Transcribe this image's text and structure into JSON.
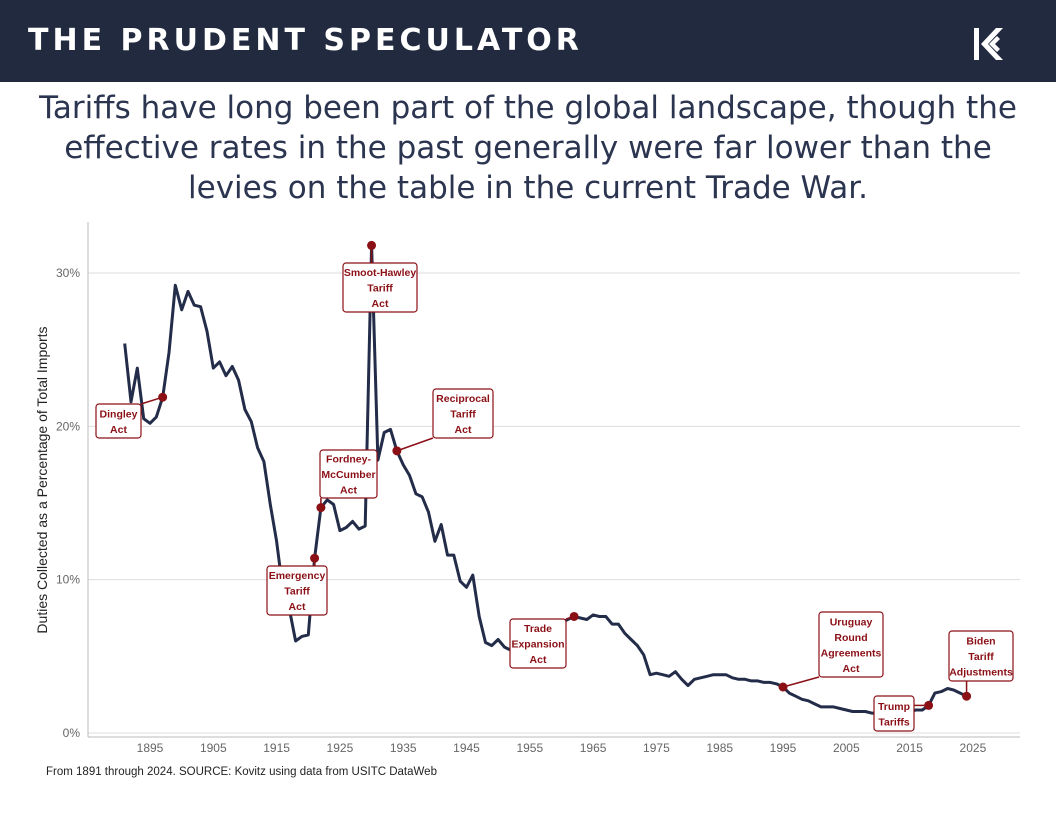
{
  "header": {
    "brand": "THE PRUDENT SPECULATOR",
    "logo_icon": "kovitz-k-logo-icon"
  },
  "headline": {
    "lines": [
      "Tariffs have long been part of the global landscape, though the",
      "effective rates in the past generally were far lower than the",
      "levies on the table in the current Trade War."
    ]
  },
  "colors": {
    "header_bg": "#212a3f",
    "line": "#232c48",
    "annotation": "#8b1016",
    "grid": "#dddddd"
  },
  "chart_data": {
    "type": "line",
    "title": "",
    "xlabel": "",
    "ylabel": "Duties Collected as a Percentage of Total Imports",
    "xlim": [
      1885,
      2031
    ],
    "ylim": [
      0,
      33
    ],
    "x_ticks": [
      1895,
      1905,
      1915,
      1925,
      1935,
      1945,
      1955,
      1965,
      1975,
      1985,
      1995,
      2005,
      2015,
      2025
    ],
    "y_ticks": [
      {
        "value": 0,
        "label": "0%"
      },
      {
        "value": 10,
        "label": "10%"
      },
      {
        "value": 20,
        "label": "20%"
      },
      {
        "value": 30,
        "label": "30%"
      }
    ],
    "grid": "horizontal",
    "series": [
      {
        "name": "Duties Collected as a Percentage of Total Imports",
        "points": [
          [
            1891,
            25.4
          ],
          [
            1892,
            21.6
          ],
          [
            1893,
            23.8
          ],
          [
            1894,
            20.5
          ],
          [
            1895,
            20.2
          ],
          [
            1896,
            20.6
          ],
          [
            1897,
            21.9
          ],
          [
            1898,
            24.8
          ],
          [
            1899,
            29.2
          ],
          [
            1900,
            27.6
          ],
          [
            1901,
            28.8
          ],
          [
            1902,
            27.9
          ],
          [
            1903,
            27.8
          ],
          [
            1904,
            26.2
          ],
          [
            1905,
            23.8
          ],
          [
            1906,
            24.2
          ],
          [
            1907,
            23.3
          ],
          [
            1908,
            23.9
          ],
          [
            1909,
            23.0
          ],
          [
            1910,
            21.1
          ],
          [
            1911,
            20.3
          ],
          [
            1912,
            18.6
          ],
          [
            1913,
            17.7
          ],
          [
            1914,
            14.9
          ],
          [
            1915,
            12.5
          ],
          [
            1916,
            9.3
          ],
          [
            1917,
            8.1
          ],
          [
            1918,
            6.0
          ],
          [
            1919,
            6.3
          ],
          [
            1920,
            6.4
          ],
          [
            1921,
            11.4
          ],
          [
            1922,
            14.7
          ],
          [
            1923,
            15.2
          ],
          [
            1924,
            14.9
          ],
          [
            1925,
            13.2
          ],
          [
            1926,
            13.4
          ],
          [
            1927,
            13.8
          ],
          [
            1928,
            13.3
          ],
          [
            1929,
            13.5
          ],
          [
            1930,
            31.8
          ],
          [
            1931,
            17.8
          ],
          [
            1932,
            19.6
          ],
          [
            1933,
            19.8
          ],
          [
            1934,
            18.4
          ],
          [
            1935,
            17.5
          ],
          [
            1936,
            16.8
          ],
          [
            1937,
            15.6
          ],
          [
            1938,
            15.4
          ],
          [
            1939,
            14.4
          ],
          [
            1940,
            12.5
          ],
          [
            1941,
            13.6
          ],
          [
            1942,
            11.6
          ],
          [
            1943,
            11.6
          ],
          [
            1944,
            9.9
          ],
          [
            1945,
            9.5
          ],
          [
            1946,
            10.3
          ],
          [
            1947,
            7.6
          ],
          [
            1948,
            5.9
          ],
          [
            1949,
            5.7
          ],
          [
            1950,
            6.1
          ],
          [
            1951,
            5.6
          ],
          [
            1952,
            5.4
          ],
          [
            1953,
            5.6
          ],
          [
            1954,
            5.3
          ],
          [
            1955,
            5.6
          ],
          [
            1956,
            6.0
          ],
          [
            1957,
            6.5
          ],
          [
            1958,
            7.1
          ],
          [
            1959,
            7.2
          ],
          [
            1960,
            7.2
          ],
          [
            1961,
            7.4
          ],
          [
            1962,
            7.6
          ],
          [
            1963,
            7.5
          ],
          [
            1964,
            7.4
          ],
          [
            1965,
            7.7
          ],
          [
            1966,
            7.6
          ],
          [
            1967,
            7.6
          ],
          [
            1968,
            7.1
          ],
          [
            1969,
            7.1
          ],
          [
            1970,
            6.5
          ],
          [
            1971,
            6.1
          ],
          [
            1972,
            5.7
          ],
          [
            1973,
            5.1
          ],
          [
            1974,
            3.8
          ],
          [
            1975,
            3.9
          ],
          [
            1976,
            3.8
          ],
          [
            1977,
            3.7
          ],
          [
            1978,
            4.0
          ],
          [
            1979,
            3.5
          ],
          [
            1980,
            3.1
          ],
          [
            1981,
            3.5
          ],
          [
            1982,
            3.6
          ],
          [
            1983,
            3.7
          ],
          [
            1984,
            3.8
          ],
          [
            1985,
            3.8
          ],
          [
            1986,
            3.8
          ],
          [
            1987,
            3.6
          ],
          [
            1988,
            3.5
          ],
          [
            1989,
            3.5
          ],
          [
            1990,
            3.4
          ],
          [
            1991,
            3.4
          ],
          [
            1992,
            3.3
          ],
          [
            1993,
            3.3
          ],
          [
            1994,
            3.2
          ],
          [
            1995,
            3.0
          ],
          [
            1996,
            2.6
          ],
          [
            1997,
            2.4
          ],
          [
            1998,
            2.2
          ],
          [
            1999,
            2.1
          ],
          [
            2000,
            1.9
          ],
          [
            2001,
            1.7
          ],
          [
            2002,
            1.7
          ],
          [
            2003,
            1.7
          ],
          [
            2004,
            1.6
          ],
          [
            2005,
            1.5
          ],
          [
            2006,
            1.4
          ],
          [
            2007,
            1.4
          ],
          [
            2008,
            1.4
          ],
          [
            2009,
            1.3
          ],
          [
            2010,
            1.3
          ],
          [
            2011,
            1.3
          ],
          [
            2012,
            1.2
          ],
          [
            2013,
            1.3
          ],
          [
            2014,
            1.3
          ],
          [
            2015,
            1.4
          ],
          [
            2016,
            1.5
          ],
          [
            2017,
            1.5
          ],
          [
            2018,
            1.8
          ],
          [
            2019,
            2.6
          ],
          [
            2020,
            2.7
          ],
          [
            2021,
            2.9
          ],
          [
            2022,
            2.8
          ],
          [
            2023,
            2.6
          ],
          [
            2024,
            2.4
          ]
        ]
      }
    ],
    "annotations": [
      {
        "label": [
          "Dingley",
          "Act"
        ],
        "x": 1897,
        "y": 21.9
      },
      {
        "label": [
          "Emergency",
          "Tariff",
          "Act"
        ],
        "x": 1921,
        "y": 11.4
      },
      {
        "label": [
          "Fordney-",
          "McCumber",
          "Act"
        ],
        "x": 1922,
        "y": 14.7
      },
      {
        "label": [
          "Smoot-Hawley",
          "Tariff",
          "Act"
        ],
        "x": 1930,
        "y": 31.8
      },
      {
        "label": [
          "Reciprocal",
          "Tariff",
          "Act"
        ],
        "x": 1934,
        "y": 18.4
      },
      {
        "label": [
          "Trade",
          "Expansion",
          "Act"
        ],
        "x": 1962,
        "y": 7.6
      },
      {
        "label": [
          "Uruguay",
          "Round",
          "Agreements",
          "Act"
        ],
        "x": 1995,
        "y": 3.0
      },
      {
        "label": [
          "Trump",
          "Tariffs"
        ],
        "x": 2018,
        "y": 1.8
      },
      {
        "label": [
          "Biden",
          "Tariff",
          "Adjustments"
        ],
        "x": 2024,
        "y": 2.4
      }
    ]
  },
  "footnote": "From 1891 through 2024. SOURCE: Kovitz using data from USITC DataWeb"
}
